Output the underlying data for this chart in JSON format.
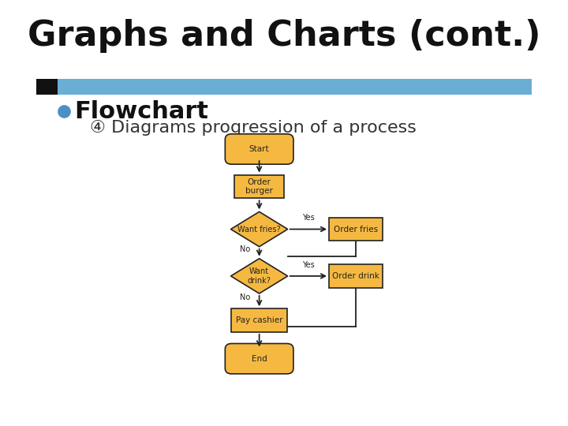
{
  "title": "Graphs and Charts (cont.)",
  "title_fontsize": 32,
  "title_font": "DejaVu Sans",
  "bg_color": "#ffffff",
  "blue_bar_color": "#6aaed6",
  "black_rect_color": "#222222",
  "bullet_color": "#4a90c4",
  "bullet_text": "Flowchart",
  "bullet_fontsize": 22,
  "sub_bullet_symbol": "④",
  "sub_bullet_text": "Diagrams progression of a process",
  "sub_bullet_fontsize": 16,
  "flowchart": {
    "shape_fill": "#f5b942",
    "shape_edge": "#222222",
    "arrow_color": "#222222",
    "text_color": "#222222"
  }
}
